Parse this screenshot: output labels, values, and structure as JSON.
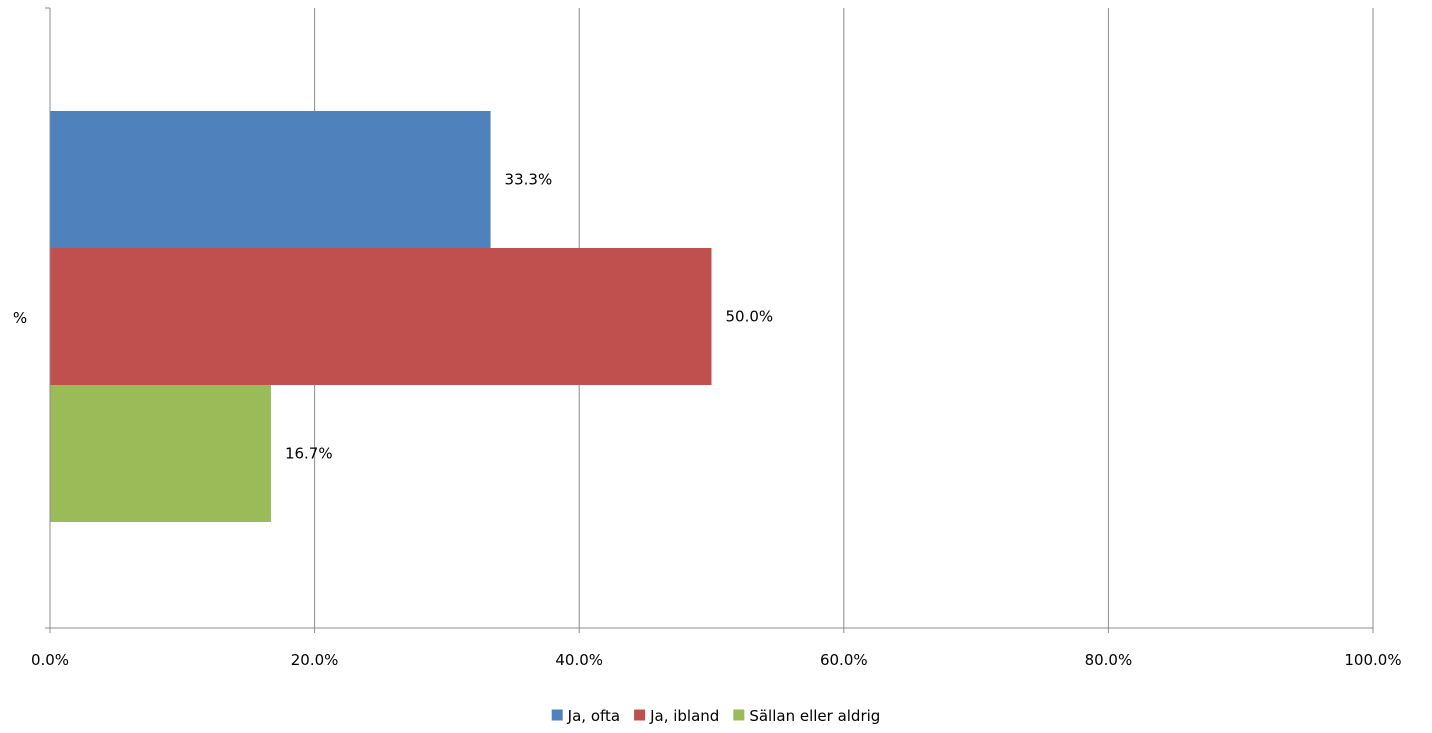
{
  "chart_data": {
    "type": "bar",
    "orientation": "horizontal",
    "categories": [
      "%"
    ],
    "series": [
      {
        "name": "Ja, ofta",
        "values": [
          33.3
        ],
        "label": "33.3%",
        "color": "#4f81bd"
      },
      {
        "name": "Ja, ibland",
        "values": [
          50.0
        ],
        "label": "50.0%",
        "color": "#c0504d"
      },
      {
        "name": "Sällan eller aldrig",
        "values": [
          16.7
        ],
        "label": "16.7%",
        "color": "#9bbb59"
      }
    ],
    "xlim": [
      0,
      100
    ],
    "xticks": [
      0,
      20,
      40,
      60,
      80,
      100
    ],
    "xtick_labels": [
      "0.0%",
      "20.0%",
      "40.0%",
      "60.0%",
      "80.0%",
      "100.0%"
    ],
    "title": "",
    "xlabel": "",
    "ylabel": "",
    "grid": "vertical",
    "legend_position": "bottom"
  }
}
